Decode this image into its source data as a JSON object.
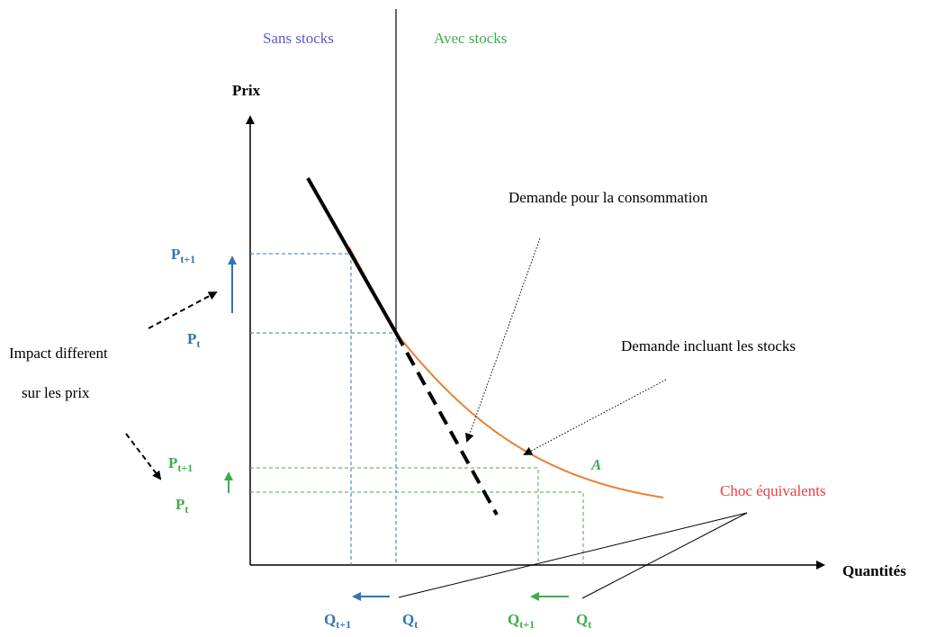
{
  "regions": {
    "left": "Sans stocks",
    "right": "Avec stocks"
  },
  "axes": {
    "y": "Prix",
    "x": "Quantités"
  },
  "curves": {
    "consumption": "Demande pour la consommation",
    "with_stocks": "Demande incluant les stocks"
  },
  "impact": {
    "line1": "Impact different",
    "line2": "sur les prix"
  },
  "point": "A",
  "shock": "Choc équivalents",
  "prices": {
    "blue_high": {
      "base": "P",
      "sub": "t+1"
    },
    "blue_low": {
      "base": "P",
      "sub": "t"
    },
    "green_high": {
      "base": "P",
      "sub": "t+1"
    },
    "green_low": {
      "base": "P",
      "sub": "t"
    }
  },
  "quantities": {
    "blue_next": {
      "base": "Q",
      "sub": "t+1"
    },
    "blue_now": {
      "base": "Q",
      "sub": "t"
    },
    "green_next": {
      "base": "Q",
      "sub": "t+1"
    },
    "green_now": {
      "base": "Q",
      "sub": "t"
    }
  }
}
